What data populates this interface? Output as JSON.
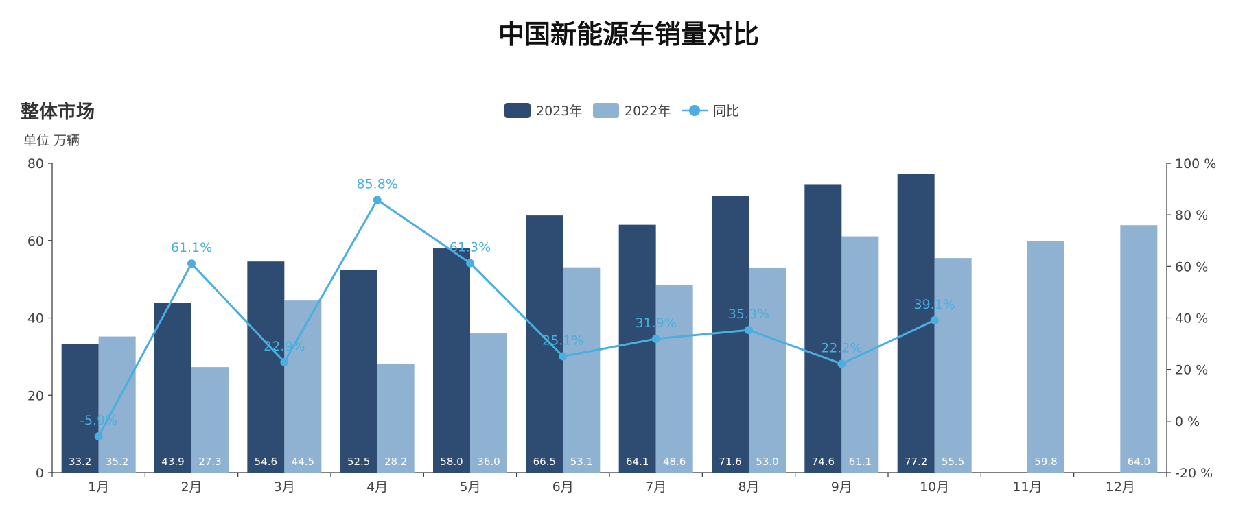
{
  "chart_data": {
    "type": "bar",
    "title": "中国新能源车销量对比",
    "subtitle": "整体市场",
    "unit_label": "单位 万辆",
    "categories": [
      "1月",
      "2月",
      "3月",
      "4月",
      "5月",
      "6月",
      "7月",
      "8月",
      "9月",
      "10月",
      "11月",
      "12月"
    ],
    "series": [
      {
        "name": "2023年",
        "type": "bar",
        "axis": "left",
        "color": "#2e4b72",
        "values": [
          33.2,
          43.9,
          54.6,
          52.5,
          58.0,
          66.5,
          64.1,
          71.6,
          74.6,
          77.2,
          null,
          null
        ],
        "labels": [
          "33.2",
          "43.9",
          "54.6",
          "52.5",
          "58.0",
          "66.5",
          "64.1",
          "71.6",
          "74.6",
          "77.2",
          "",
          ""
        ]
      },
      {
        "name": "2022年",
        "type": "bar",
        "axis": "left",
        "color": "#8fb2d2",
        "values": [
          35.2,
          27.3,
          44.5,
          28.2,
          36.0,
          53.1,
          48.6,
          53.0,
          61.1,
          55.5,
          59.8,
          64.0
        ],
        "labels": [
          "35.2",
          "27.3",
          "44.5",
          "28.2",
          "36.0",
          "53.1",
          "48.6",
          "53.0",
          "61.1",
          "55.5",
          "59.8",
          "64.0"
        ]
      },
      {
        "name": "同比",
        "type": "line",
        "axis": "right",
        "color": "#4aaee0",
        "values": [
          -5.9,
          61.1,
          22.9,
          85.8,
          61.3,
          25.1,
          31.9,
          35.3,
          22.2,
          39.1,
          null,
          null
        ],
        "labels": [
          "-5.9%",
          "61.1%",
          "22.9%",
          "85.8%",
          "61.3%",
          "25.1%",
          "31.9%",
          "35.3%",
          "22.2%",
          "39.1%",
          "",
          ""
        ]
      }
    ],
    "y_left": {
      "min": 0,
      "max": 80,
      "ticks": [
        0,
        20,
        40,
        60,
        80
      ],
      "tick_labels": [
        "0",
        "20",
        "40",
        "60",
        "80"
      ]
    },
    "y_right": {
      "min": -20,
      "max": 100,
      "ticks": [
        -20,
        0,
        20,
        40,
        60,
        80,
        100
      ],
      "tick_labels": [
        "-20 %",
        "0 %",
        "20 %",
        "40 %",
        "60 %",
        "80 %",
        "100 %"
      ]
    },
    "legend": {
      "placement": "top-center"
    },
    "grid": false
  }
}
